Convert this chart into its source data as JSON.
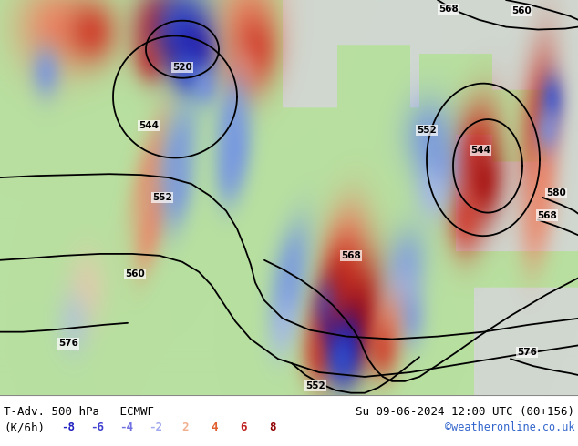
{
  "title_left": "T-Adv. 500 hPa   ECMWF",
  "title_right": "Su 09-06-2024 12:00 UTC (00+156)",
  "subtitle_left": "(K/6h)",
  "legend_values": [
    "-8",
    "-6",
    "-4",
    "-2",
    "2",
    "4",
    "6",
    "8"
  ],
  "legend_colors_neg": [
    "#2020c0",
    "#4040d0",
    "#7070e0",
    "#a0a8f0"
  ],
  "legend_colors_pos": [
    "#f0b090",
    "#e06030",
    "#c02020",
    "#900000"
  ],
  "copyright": "©weatheronline.co.uk",
  "land_color": "#b8e0a0",
  "sea_color": "#d0d8d0",
  "figsize": [
    6.34,
    4.9
  ],
  "dpi": 100,
  "title_fontsize": 9,
  "legend_fontsize": 9
}
